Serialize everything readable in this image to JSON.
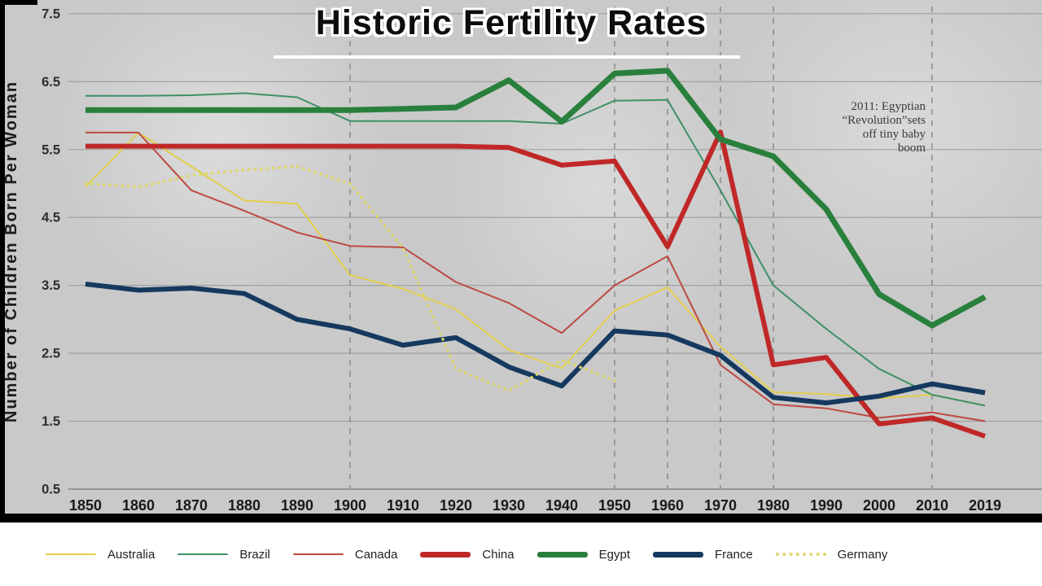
{
  "title": "Historic Fertility Rates",
  "y_axis_title": "Number of Children Born Per Woman",
  "annotation": "2011: Egyptian\n“Revolution”sets\noff tiny baby\nboom",
  "chart_data": {
    "type": "line",
    "title": "Historic Fertility Rates",
    "xlabel": "",
    "ylabel": "Number of Children Born Per Woman",
    "ylim": [
      0.5,
      7.5
    ],
    "y_ticks": [
      7.5,
      6.5,
      5.5,
      4.5,
      3.5,
      2.5,
      1.5,
      0.5
    ],
    "grid": "horizontal solid, vertical dashed",
    "grid_years": [
      "1900",
      "1950",
      "1960",
      "1970",
      "1980",
      "2010"
    ],
    "legend_position": "bottom",
    "categories": [
      "1850",
      "1860",
      "1870",
      "1880",
      "1890",
      "1900",
      "1910",
      "1920",
      "1930",
      "1940",
      "1950",
      "1960",
      "1970",
      "1980",
      "1990",
      "2000",
      "2010",
      "2019"
    ],
    "series": [
      {
        "name": "Australia",
        "color": "#e2ce4d",
        "width": 2,
        "style": "solid",
        "values": [
          4.95,
          5.75,
          5.25,
          4.75,
          4.7,
          3.65,
          3.45,
          3.15,
          2.55,
          2.28,
          3.13,
          3.47,
          2.6,
          1.93,
          1.9,
          1.84,
          1.89,
          1.73
        ]
      },
      {
        "name": "Brazil",
        "color": "#3f9066",
        "width": 2,
        "style": "solid",
        "values": [
          6.29,
          6.29,
          6.3,
          6.33,
          6.27,
          5.92,
          5.92,
          5.92,
          5.92,
          5.88,
          6.22,
          6.23,
          4.9,
          3.5,
          2.86,
          2.27,
          1.89,
          1.73
        ]
      },
      {
        "name": "Canada",
        "color": "#bc4a42",
        "width": 2,
        "style": "solid",
        "values": [
          5.75,
          5.75,
          4.9,
          4.6,
          4.28,
          4.08,
          4.06,
          3.55,
          3.24,
          2.8,
          3.5,
          3.93,
          2.33,
          1.75,
          1.69,
          1.55,
          1.63,
          1.5
        ]
      },
      {
        "name": "China",
        "color": "#c02828",
        "width": 6,
        "style": "solid",
        "values": [
          5.55,
          5.55,
          5.55,
          5.55,
          5.55,
          5.55,
          5.55,
          5.55,
          5.53,
          5.27,
          5.33,
          4.07,
          5.76,
          2.33,
          2.44,
          1.46,
          1.55,
          1.28
        ]
      },
      {
        "name": "Egypt",
        "color": "#28803c",
        "width": 7,
        "style": "solid",
        "values": [
          6.08,
          6.08,
          6.08,
          6.08,
          6.08,
          6.08,
          6.1,
          6.12,
          6.52,
          5.91,
          6.62,
          6.66,
          5.65,
          5.4,
          4.62,
          3.37,
          2.91,
          3.33
        ]
      },
      {
        "name": "France",
        "color": "#15395f",
        "width": 6,
        "style": "solid",
        "values": [
          3.52,
          3.43,
          3.46,
          3.38,
          3.0,
          2.86,
          2.62,
          2.73,
          2.3,
          2.02,
          2.83,
          2.77,
          2.47,
          1.85,
          1.77,
          1.87,
          2.05,
          1.92
        ]
      },
      {
        "name": "Germany",
        "color": "#ddd66a",
        "width": 3,
        "style": "dotted",
        "values": [
          5.0,
          4.95,
          5.12,
          5.2,
          5.25,
          5.0,
          4.05,
          2.27,
          1.95,
          2.4,
          2.1,
          null,
          null,
          null,
          null,
          null,
          null,
          null
        ]
      }
    ]
  }
}
